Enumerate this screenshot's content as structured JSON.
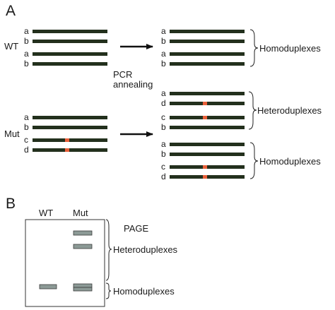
{
  "colors": {
    "strand": "#23301d",
    "mutation": "#e8603a",
    "gel_band_fill": "#8c9a96",
    "gel_band_stroke": "#3a3a3a"
  },
  "panel_a": {
    "label": "A",
    "wt_label": "WT",
    "mut_label": "Mut",
    "process_label_line1": "PCR",
    "process_label_line2": "annealing",
    "wt_strands": [
      "a",
      "b",
      "a",
      "b"
    ],
    "mut_strands": [
      "a",
      "b",
      "c",
      "d"
    ],
    "product_group_1": {
      "strands": [
        "a",
        "b",
        "a",
        "b"
      ],
      "label": "Homoduplexes"
    },
    "product_group_2": {
      "strands": [
        "a",
        "d",
        "c",
        "b"
      ],
      "label": "Heteroduplexes"
    },
    "product_group_3": {
      "strands": [
        "a",
        "b",
        "c",
        "d"
      ],
      "label": "Homoduplexes"
    }
  },
  "panel_b": {
    "label": "B",
    "lane_wt": "WT",
    "lane_mut": "Mut",
    "gel_title": "PAGE",
    "hetero_label": "Heteroduplexes",
    "homo_label": "Homoduplexes"
  }
}
